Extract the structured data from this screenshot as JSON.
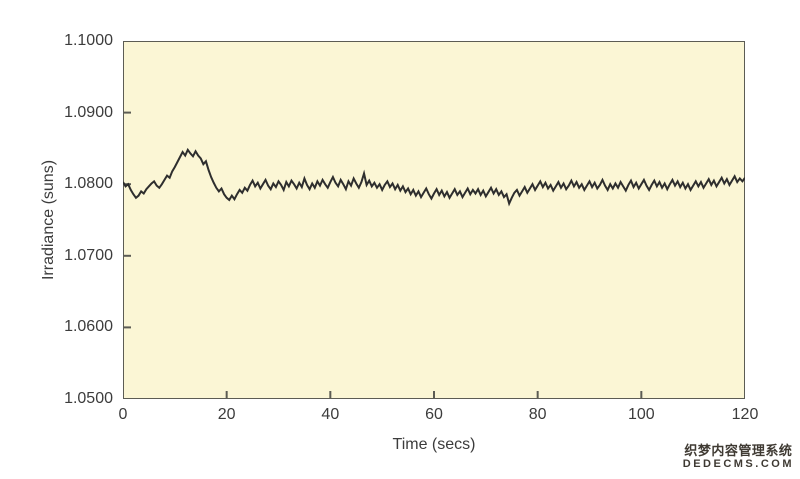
{
  "colors": {
    "plot_background": "#fbf6d5",
    "axis": "#5c5c54",
    "text": "#3c3c3c",
    "trace": "#2e2e2e"
  },
  "watermark": {
    "line1": "织梦内容管理系统",
    "line2": "DEDECMS.COM",
    "color": "#3f3a33"
  },
  "chart_data": {
    "type": "line",
    "title": "",
    "xlabel": "Time (secs)",
    "ylabel": "Irradiance (suns)",
    "xlim": [
      0,
      120
    ],
    "ylim": [
      1.05,
      1.1
    ],
    "grid": false,
    "legend": null,
    "x_ticks": [
      0,
      20,
      40,
      60,
      80,
      100,
      120
    ],
    "x_tick_labels": [
      "0",
      "20",
      "40",
      "60",
      "80",
      "100",
      "120"
    ],
    "y_ticks": [
      1.05,
      1.06,
      1.07,
      1.08,
      1.09,
      1.1
    ],
    "y_tick_labels": [
      "1.0500",
      "1.0600",
      "1.0700",
      "1.0800",
      "1.0900",
      "1.1000"
    ],
    "series": [
      {
        "name": "irradiance",
        "x_start": 0,
        "x_step": 0.5,
        "values": [
          1.0803,
          1.0797,
          1.08,
          1.0792,
          1.0786,
          1.0781,
          1.0784,
          1.079,
          1.0787,
          1.0793,
          1.0797,
          1.0801,
          1.0804,
          1.0798,
          1.0795,
          1.08,
          1.0806,
          1.0812,
          1.0809,
          1.0818,
          1.0824,
          1.0831,
          1.0838,
          1.0845,
          1.084,
          1.0848,
          1.0843,
          1.0839,
          1.0846,
          1.084,
          1.0836,
          1.0828,
          1.0832,
          1.082,
          1.081,
          1.0802,
          1.0795,
          1.079,
          1.0794,
          1.0786,
          1.0781,
          1.0778,
          1.0784,
          1.0779,
          1.0786,
          1.0792,
          1.0788,
          1.0795,
          1.0791,
          1.0799,
          1.0805,
          1.0797,
          1.0802,
          1.0794,
          1.08,
          1.0806,
          1.0798,
          1.0793,
          1.0801,
          1.0796,
          1.0804,
          1.0799,
          1.0792,
          1.0803,
          1.0797,
          1.0805,
          1.08,
          1.0794,
          1.0802,
          1.0796,
          1.0808,
          1.0799,
          1.0793,
          1.0801,
          1.0795,
          1.0804,
          1.0798,
          1.0806,
          1.08,
          1.0795,
          1.0803,
          1.081,
          1.0802,
          1.0797,
          1.0806,
          1.08,
          1.0793,
          1.0804,
          1.0798,
          1.0808,
          1.0801,
          1.0795,
          1.0803,
          1.0815,
          1.0799,
          1.0805,
          1.0797,
          1.0802,
          1.0795,
          1.08,
          1.0792,
          1.0799,
          1.0804,
          1.0796,
          1.0801,
          1.0793,
          1.0799,
          1.0791,
          1.0797,
          1.0789,
          1.0794,
          1.0786,
          1.0792,
          1.0784,
          1.079,
          1.0782,
          1.0788,
          1.0794,
          1.0786,
          1.078,
          1.0787,
          1.0793,
          1.0785,
          1.0791,
          1.0783,
          1.0789,
          1.0781,
          1.0787,
          1.0793,
          1.0785,
          1.079,
          1.0782,
          1.0788,
          1.0794,
          1.0786,
          1.0792,
          1.0787,
          1.0793,
          1.0785,
          1.0791,
          1.0783,
          1.0789,
          1.0795,
          1.0787,
          1.0793,
          1.0785,
          1.079,
          1.0782,
          1.0786,
          1.0773,
          1.0781,
          1.0788,
          1.0792,
          1.0784,
          1.079,
          1.0796,
          1.0788,
          1.0794,
          1.08,
          1.0792,
          1.0798,
          1.0804,
          1.0796,
          1.0802,
          1.0794,
          1.0799,
          1.0791,
          1.0797,
          1.0803,
          1.0795,
          1.0801,
          1.0793,
          1.0798,
          1.0805,
          1.0797,
          1.0803,
          1.0795,
          1.08,
          1.0792,
          1.0798,
          1.0804,
          1.0796,
          1.0802,
          1.0794,
          1.0799,
          1.0806,
          1.0798,
          1.0792,
          1.08,
          1.0794,
          1.0801,
          1.0795,
          1.0803,
          1.0797,
          1.0791,
          1.0799,
          1.0805,
          1.0796,
          1.0802,
          1.0794,
          1.08,
          1.0806,
          1.0798,
          1.0792,
          1.0799,
          1.0805,
          1.0797,
          1.0803,
          1.0795,
          1.0801,
          1.0793,
          1.08,
          1.0806,
          1.0798,
          1.0804,
          1.0796,
          1.0802,
          1.0794,
          1.08,
          1.0792,
          1.0798,
          1.0804,
          1.0797,
          1.0803,
          1.0795,
          1.0801,
          1.0807,
          1.0799,
          1.0805,
          1.0797,
          1.0803,
          1.0809,
          1.0801,
          1.0807,
          1.0799,
          1.0805,
          1.0811,
          1.0803,
          1.0808,
          1.0804,
          1.0809
        ]
      }
    ]
  }
}
